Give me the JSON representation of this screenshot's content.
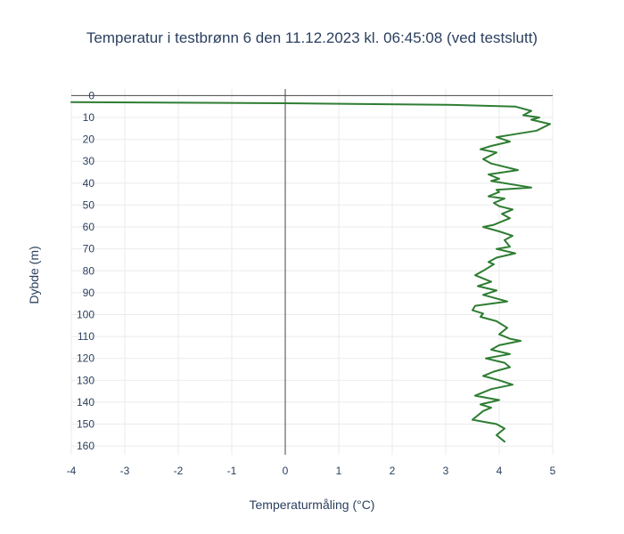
{
  "chart_data": {
    "type": "line",
    "title": "Temperatur i testbrønn 6 den 11.12.2023 kl. 06:45:08 (ved testslutt)",
    "xlabel": "Temperaturmåling (°C)",
    "ylabel": "Dybde (m)",
    "xlim": [
      -4,
      5
    ],
    "ylim": [
      164,
      -3
    ],
    "y_reversed": true,
    "grid": true,
    "x_ticks": [
      "-4",
      "-3",
      "-2",
      "-1",
      "0",
      "1",
      "2",
      "3",
      "4",
      "5"
    ],
    "y_ticks": [
      "0",
      "10",
      "20",
      "30",
      "40",
      "50",
      "60",
      "70",
      "80",
      "90",
      "100",
      "110",
      "120",
      "130",
      "140",
      "150",
      "160"
    ],
    "line_color": "#2e7d32",
    "series": [
      {
        "x": [
          -4,
          0,
          3,
          4.3,
          4.6,
          4.45,
          4.75,
          4.6,
          4.95,
          4.7,
          4.2,
          3.95,
          4.2,
          3.85,
          3.65,
          3.95,
          3.7,
          3.85,
          4.35,
          3.8,
          4.0,
          3.85,
          4.6,
          3.95,
          4.0,
          3.8,
          4.1,
          3.9,
          4.0,
          4.25,
          4.05,
          4.2,
          4.0,
          3.9,
          3.7,
          4.0,
          4.25,
          4.1,
          4.2,
          3.95,
          4.3,
          3.95,
          3.8,
          3.9,
          3.7,
          3.55,
          3.85,
          3.6,
          3.95,
          3.7,
          4.15,
          3.55,
          3.5,
          3.7,
          3.65,
          3.95,
          4.15,
          4.0,
          4.2,
          4.4,
          4.0,
          3.85,
          4.2,
          3.75,
          4.1,
          4.2,
          3.9,
          3.7,
          4.0,
          4.25,
          3.85,
          3.55,
          4.0,
          3.65,
          3.85,
          3.7,
          3.5,
          3.95,
          4.1,
          3.95,
          4.1
        ],
        "y": [
          3,
          3.5,
          4.2,
          5,
          7,
          9,
          10,
          11,
          13,
          16,
          18,
          19,
          21,
          23,
          24.5,
          26,
          29,
          31,
          34,
          36,
          38,
          39,
          42,
          43,
          44,
          46,
          47,
          49,
          50.5,
          52,
          54,
          56,
          58,
          59,
          60,
          62,
          64,
          66,
          69,
          70,
          72,
          74,
          76,
          77,
          80,
          82,
          85,
          87,
          89,
          91,
          94,
          96,
          98,
          99.5,
          101,
          103,
          106,
          109,
          111,
          112,
          114,
          116,
          118,
          120,
          122,
          124,
          126,
          128,
          130,
          132,
          134,
          137,
          139,
          141,
          142.5,
          144,
          148,
          150,
          152,
          155,
          158
        ]
      }
    ]
  }
}
